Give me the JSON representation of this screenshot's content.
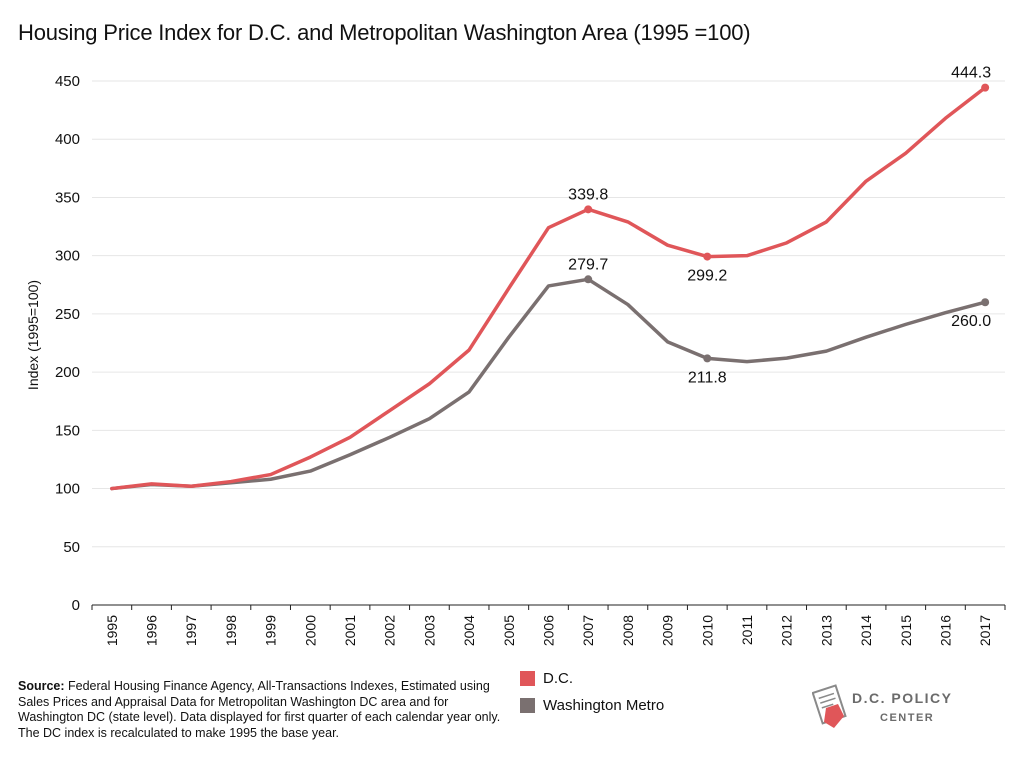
{
  "chart_data": {
    "type": "line",
    "title": "Housing Price Index for D.C. and Metropolitan Washington Area (1995 =100)",
    "ylabel": "Index (1995=100)",
    "xlabel": "",
    "ylim": [
      0,
      450
    ],
    "yticks": [
      0,
      50,
      100,
      150,
      200,
      250,
      300,
      350,
      400,
      450
    ],
    "x": [
      "1995",
      "1996",
      "1997",
      "1998",
      "1999",
      "2000",
      "2001",
      "2002",
      "2003",
      "2004",
      "2005",
      "2006",
      "2007",
      "2008",
      "2009",
      "2010",
      "2011",
      "2012",
      "2013",
      "2014",
      "2015",
      "2016",
      "2017"
    ],
    "grid": "horizontal",
    "legend": "bottom",
    "series": [
      {
        "name": "D.C.",
        "color": "#e05659",
        "values": [
          100,
          104,
          102,
          106,
          112,
          127,
          144,
          167,
          190,
          219,
          272,
          324,
          339.8,
          329,
          309,
          299.2,
          300,
          311,
          329,
          364,
          388,
          418,
          444.3
        ]
      },
      {
        "name": "Washington Metro",
        "color": "#7a7070",
        "values": [
          100,
          103.5,
          102,
          105,
          108,
          115,
          129,
          144,
          160,
          183,
          230,
          274,
          279.7,
          258,
          226,
          211.8,
          209,
          212,
          218,
          230,
          241,
          251,
          260.0
        ]
      }
    ],
    "annotations": [
      {
        "series": 0,
        "index": 12,
        "text": "339.8",
        "pos": "above"
      },
      {
        "series": 0,
        "index": 15,
        "text": "299.2",
        "pos": "below"
      },
      {
        "series": 0,
        "index": 22,
        "text": "444.3",
        "pos": "above"
      },
      {
        "series": 1,
        "index": 12,
        "text": "279.7",
        "pos": "above"
      },
      {
        "series": 1,
        "index": 15,
        "text": "211.8",
        "pos": "below"
      },
      {
        "series": 1,
        "index": 22,
        "text": "260.0",
        "pos": "below"
      }
    ]
  },
  "source": {
    "label": "Source:",
    "text": " Federal Housing Finance Agency, All-Transactions Indexes, Estimated using Sales Prices and Appraisal Data for Metropolitan Washington DC area and for Washington DC (state level). Data displayed for first quarter of each calendar year only. The DC index is recalculated to make 1995 the base year."
  },
  "logo": {
    "line1": "D.C. POLICY",
    "line2": "CENTER",
    "icon": "dc-map-document-icon"
  }
}
